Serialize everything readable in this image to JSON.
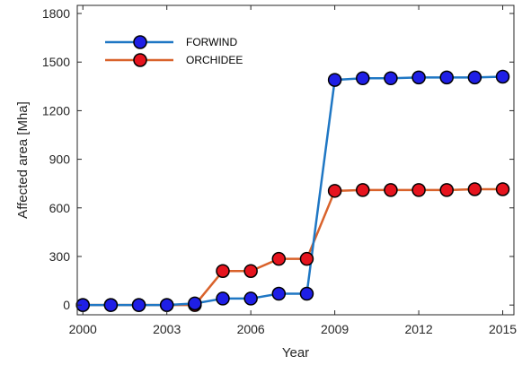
{
  "chart_data": {
    "type": "line",
    "title": "",
    "xlabel": "Year",
    "ylabel": "Affected area [Mha]",
    "xlim": [
      1999.8,
      2015.4
    ],
    "ylim": [
      -60,
      1850
    ],
    "x_ticks": [
      2000,
      2003,
      2006,
      2009,
      2012,
      2015
    ],
    "y_ticks": [
      0,
      300,
      600,
      900,
      1200,
      1500,
      1800
    ],
    "grid": false,
    "legend_position": "top-left",
    "x": [
      2000,
      2001,
      2002,
      2003,
      2004,
      2005,
      2006,
      2007,
      2008,
      2009,
      2010,
      2011,
      2012,
      2013,
      2014,
      2015
    ],
    "series": [
      {
        "name": "FORWIND",
        "line_color": "#1f77c4",
        "marker_color": "#1f1fe6",
        "values": [
          0,
          0,
          0,
          0,
          10,
          40,
          40,
          70,
          70,
          1390,
          1400,
          1400,
          1405,
          1405,
          1405,
          1410
        ]
      },
      {
        "name": "ORCHIDEE",
        "line_color": "#d9622b",
        "marker_color": "#e6141e",
        "values": [
          0,
          0,
          0,
          0,
          0,
          210,
          210,
          285,
          285,
          705,
          710,
          710,
          710,
          710,
          715,
          715
        ]
      }
    ]
  }
}
